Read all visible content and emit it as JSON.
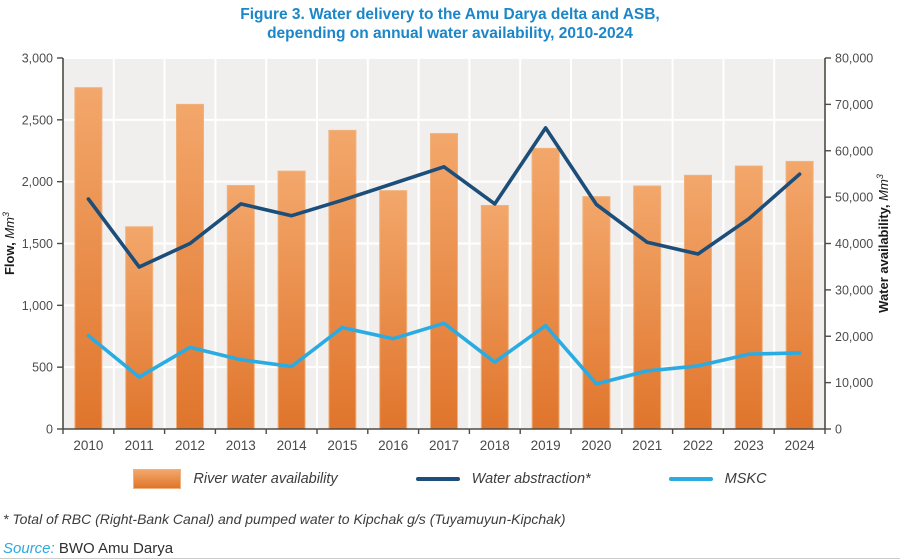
{
  "figure": {
    "title_line1": "Figure 3. Water delivery to the Amu Darya delta and ASB,",
    "title_line2": "depending on annual water availability, 2010-2024",
    "footnote": "* Total of RBC (Right-Bank Canal) and pumped water to Kipchak g/s (Tuyamuyun-Kipchak)",
    "source_label": "Source:",
    "source_value": "BWO Amu Darya"
  },
  "colors": {
    "title": "#1b86c8",
    "bar_top": "#f3a76b",
    "bar_bottom": "#e0752c",
    "bar_border": "#f0b27c",
    "abstraction_line": "#1d4e79",
    "mskc_line": "#2aabe2",
    "plot_bg": "#f0efed",
    "gridline": "#ffffff",
    "axis": "#4d4b45",
    "source_label_color": "#2aabe2"
  },
  "chart_data": {
    "type": "bar+line combo",
    "title": "Water delivery to the Amu Darya delta and ASB, depending on annual water availability, 2010-2024",
    "categories": [
      "2010",
      "2011",
      "2012",
      "2013",
      "2014",
      "2015",
      "2016",
      "2017",
      "2018",
      "2019",
      "2020",
      "2021",
      "2022",
      "2023",
      "2024"
    ],
    "series": [
      {
        "name": "River water availability",
        "type": "bar",
        "axis": "right",
        "values": [
          73600,
          43600,
          70000,
          52500,
          55600,
          64400,
          51400,
          63700,
          48200,
          60500,
          50100,
          52400,
          54700,
          56700,
          57700
        ]
      },
      {
        "name": "Water abstraction*",
        "type": "line",
        "axis": "left",
        "values": [
          1860,
          1310,
          1500,
          1820,
          1725,
          1850,
          1985,
          2120,
          1820,
          2435,
          1815,
          1510,
          1415,
          1700,
          2060
        ]
      },
      {
        "name": "MSKC",
        "type": "line",
        "axis": "left",
        "values": [
          755,
          420,
          660,
          560,
          505,
          820,
          730,
          855,
          540,
          835,
          365,
          470,
          510,
          605,
          615
        ]
      }
    ],
    "left_axis": {
      "title_bold": "Flow, ",
      "title_unit": "Mm",
      "title_sup": "3",
      "min": 0,
      "max": 3000,
      "step": 500,
      "tick_labels": [
        "0",
        "500",
        "1,000",
        "1,500",
        "2,000",
        "2,500",
        "3,000"
      ]
    },
    "right_axis": {
      "title_bold": "Water availability, ",
      "title_unit": "Mm",
      "title_sup": "3",
      "min": 0,
      "max": 80000,
      "step": 10000,
      "tick_labels": [
        "0",
        "10,000",
        "20,000",
        "30,000",
        "40,000",
        "50,000",
        "60,000",
        "70,000",
        "80,000"
      ]
    },
    "grid": "horizontal white lines at left-axis steps, vertical white lines at category boundaries",
    "legend_position": "bottom"
  }
}
